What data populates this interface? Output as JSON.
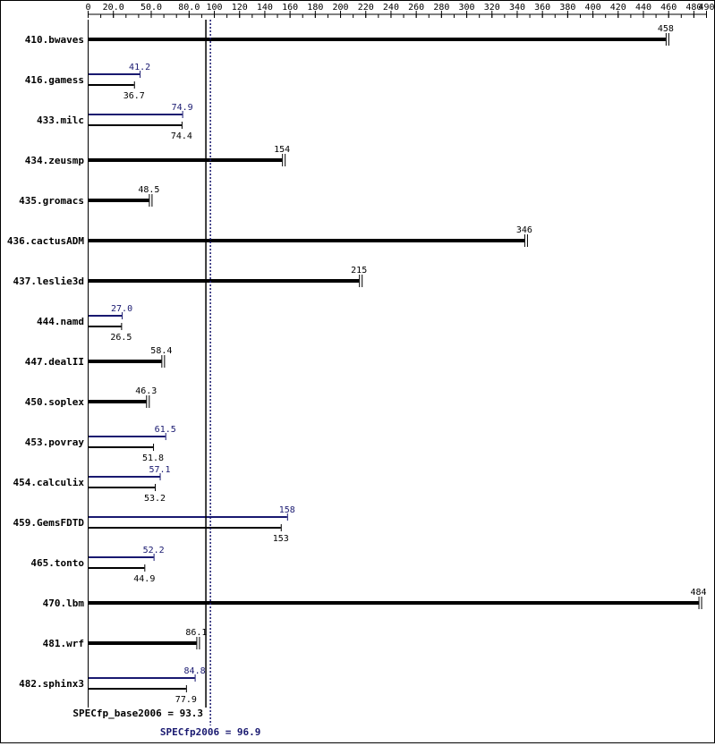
{
  "chart_data": {
    "type": "bar",
    "orientation": "horizontal",
    "axis": {
      "min": 0,
      "max": 490,
      "position": "top",
      "ticks": [
        {
          "v": 0,
          "label": "0"
        },
        {
          "v": 20,
          "label": "20.0"
        },
        {
          "v": 50,
          "label": "50.0"
        },
        {
          "v": 80,
          "label": "80.0"
        },
        {
          "v": 100,
          "label": "100"
        },
        {
          "v": 120,
          "label": "120"
        },
        {
          "v": 140,
          "label": "140"
        },
        {
          "v": 160,
          "label": "160"
        },
        {
          "v": 180,
          "label": "180"
        },
        {
          "v": 200,
          "label": "200"
        },
        {
          "v": 220,
          "label": "220"
        },
        {
          "v": 240,
          "label": "240"
        },
        {
          "v": 260,
          "label": "260"
        },
        {
          "v": 280,
          "label": "280"
        },
        {
          "v": 300,
          "label": "300"
        },
        {
          "v": 320,
          "label": "320"
        },
        {
          "v": 340,
          "label": "340"
        },
        {
          "v": 360,
          "label": "360"
        },
        {
          "v": 380,
          "label": "380"
        },
        {
          "v": 400,
          "label": "400"
        },
        {
          "v": 420,
          "label": "420"
        },
        {
          "v": 440,
          "label": "440"
        },
        {
          "v": 460,
          "label": "460"
        },
        {
          "v": 480,
          "label": "480"
        },
        {
          "v": 490,
          "label": "490"
        }
      ]
    },
    "series": [
      {
        "key": "base",
        "color": "#000000"
      },
      {
        "key": "peak",
        "color": "#191970"
      }
    ],
    "benchmarks": [
      {
        "name": "410.bwaves",
        "base": 458,
        "base_label": "458",
        "peak": null,
        "peak_label": ""
      },
      {
        "name": "416.gamess",
        "base": 36.7,
        "base_label": "36.7",
        "peak": 41.2,
        "peak_label": "41.2"
      },
      {
        "name": "433.milc",
        "base": 74.4,
        "base_label": "74.4",
        "peak": 74.9,
        "peak_label": "74.9"
      },
      {
        "name": "434.zeusmp",
        "base": 154,
        "base_label": "154",
        "peak": null,
        "peak_label": ""
      },
      {
        "name": "435.gromacs",
        "base": 48.5,
        "base_label": "48.5",
        "peak": null,
        "peak_label": ""
      },
      {
        "name": "436.cactusADM",
        "base": 346,
        "base_label": "346",
        "peak": null,
        "peak_label": ""
      },
      {
        "name": "437.leslie3d",
        "base": 215,
        "base_label": "215",
        "peak": null,
        "peak_label": ""
      },
      {
        "name": "444.namd",
        "base": 26.5,
        "base_label": "26.5",
        "peak": 27.0,
        "peak_label": "27.0"
      },
      {
        "name": "447.dealII",
        "base": 58.4,
        "base_label": "58.4",
        "peak": null,
        "peak_label": ""
      },
      {
        "name": "450.soplex",
        "base": 46.3,
        "base_label": "46.3",
        "peak": null,
        "peak_label": ""
      },
      {
        "name": "453.povray",
        "base": 51.8,
        "base_label": "51.8",
        "peak": 61.5,
        "peak_label": "61.5"
      },
      {
        "name": "454.calculix",
        "base": 53.2,
        "base_label": "53.2",
        "peak": 57.1,
        "peak_label": "57.1"
      },
      {
        "name": "459.GemsFDTD",
        "base": 153,
        "base_label": "153",
        "peak": 158,
        "peak_label": "158"
      },
      {
        "name": "465.tonto",
        "base": 44.9,
        "base_label": "44.9",
        "peak": 52.2,
        "peak_label": "52.2"
      },
      {
        "name": "470.lbm",
        "base": 484,
        "base_label": "484",
        "peak": null,
        "peak_label": ""
      },
      {
        "name": "481.wrf",
        "base": 86.1,
        "base_label": "86.1",
        "peak": null,
        "peak_label": ""
      },
      {
        "name": "482.sphinx3",
        "base": 77.9,
        "base_label": "77.9",
        "peak": 84.8,
        "peak_label": "84.8"
      }
    ],
    "summary": {
      "base_value": 93.3,
      "base_text": "SPECfp_base2006 = 93.3",
      "peak_value": 96.9,
      "peak_text": "SPECfp2006 = 96.9"
    }
  }
}
